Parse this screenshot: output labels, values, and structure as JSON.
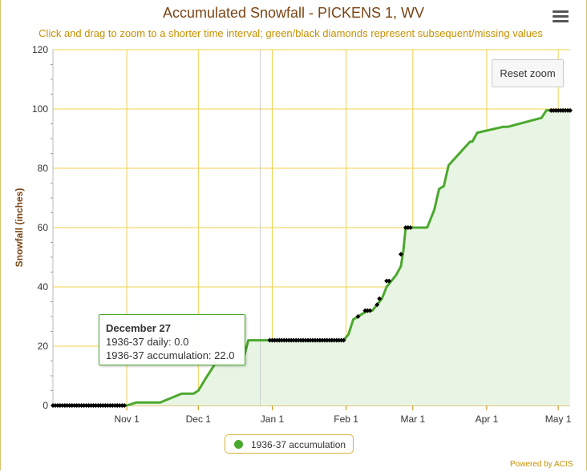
{
  "title": "Accumulated Snowfall - PICKENS 1, WV",
  "subtitle": "Click and drag to zoom to a shorter time interval; green/black diamonds represent subsequent/missing values",
  "reset_zoom_label": "Reset zoom",
  "menu_icon": "hamburger-menu-icon",
  "credits": "Powered by ACIS",
  "colors": {
    "line": "#4ba82e",
    "area": "#e9f5e4",
    "grid": "#f0d14a",
    "missing_marker": "#000000",
    "title": "#7a4514",
    "subtitle": "#c69100"
  },
  "tooltip": {
    "title": "December 27",
    "line1": "1936-37 daily: 0.0",
    "line2": "1936-37 accumulation: 22.0"
  },
  "legend": {
    "label": "1936-37 accumulation"
  },
  "chart_data": {
    "type": "area",
    "ylabel": "Snowfall (inches)",
    "ylim": [
      0,
      120
    ],
    "yticks": [
      0,
      20,
      40,
      60,
      80,
      100,
      120
    ],
    "xlim": [
      "1936-10-01",
      "1937-05-06"
    ],
    "xtick_labels": [
      {
        "date": "1936-11-01",
        "label": "Nov 1"
      },
      {
        "date": "1936-12-01",
        "label": "Dec 1"
      },
      {
        "date": "1937-01-01",
        "label": "Jan 1"
      },
      {
        "date": "1937-02-01",
        "label": "Feb 1"
      },
      {
        "date": "1937-03-01",
        "label": "Mar 1"
      },
      {
        "date": "1937-04-01",
        "label": "Apr 1"
      },
      {
        "date": "1937-05-01",
        "label": "May 1"
      }
    ],
    "grid": true,
    "crosshair_date": "1936-12-27",
    "series": [
      {
        "name": "1936-37 accumulation",
        "x": [
          "1936-10-01",
          "1936-10-31",
          "1936-11-01",
          "1936-11-05",
          "1936-11-15",
          "1936-11-24",
          "1936-11-26",
          "1936-11-29",
          "1936-12-01",
          "1936-12-04",
          "1936-12-08",
          "1936-12-18",
          "1936-12-20",
          "1936-12-22",
          "1937-01-31",
          "1937-02-02",
          "1937-02-04",
          "1937-02-06",
          "1937-02-08",
          "1937-02-10",
          "1937-02-12",
          "1937-02-14",
          "1937-02-16",
          "1937-02-18",
          "1937-02-20",
          "1937-02-22",
          "1937-02-24",
          "1937-02-25",
          "1937-02-26",
          "1937-03-07",
          "1937-03-10",
          "1937-03-12",
          "1937-03-14",
          "1937-03-16",
          "1937-03-25",
          "1937-03-26",
          "1937-03-28",
          "1937-04-08",
          "1937-04-10",
          "1937-04-24",
          "1937-04-26",
          "1937-05-06"
        ],
        "y": [
          0,
          0,
          0,
          1,
          1,
          4,
          4,
          4,
          5,
          9,
          14,
          14,
          16,
          22,
          22,
          24,
          29,
          30,
          31,
          32,
          32,
          34,
          36,
          40,
          42,
          44,
          47,
          52,
          60,
          60,
          66,
          73,
          74,
          81,
          89,
          89,
          92,
          94,
          94,
          97,
          99.5,
          99.5
        ]
      }
    ],
    "missing_markers": [
      {
        "from": "1936-10-01",
        "to": "1936-10-31",
        "y": 0
      },
      {
        "from": "1936-12-31",
        "to": "1937-01-31",
        "y": 22
      },
      {
        "from": "1937-04-28",
        "to": "1937-05-06",
        "y": 99.5
      },
      {
        "date": "1937-02-06",
        "y": 30
      },
      {
        "date": "1937-02-09",
        "y": 32
      },
      {
        "date": "1937-02-10",
        "y": 32
      },
      {
        "date": "1937-02-11",
        "y": 32
      },
      {
        "date": "1937-02-14",
        "y": 34
      },
      {
        "date": "1937-02-15",
        "y": 36
      },
      {
        "date": "1937-02-18",
        "y": 42
      },
      {
        "date": "1937-02-19",
        "y": 42
      },
      {
        "date": "1937-02-24",
        "y": 51
      },
      {
        "date": "1937-02-26",
        "y": 60
      },
      {
        "date": "1937-02-27",
        "y": 60
      },
      {
        "date": "1937-02-28",
        "y": 60
      }
    ]
  }
}
